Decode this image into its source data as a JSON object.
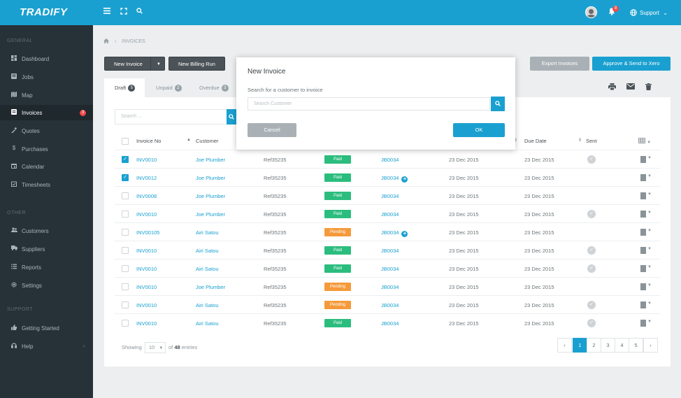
{
  "app": {
    "logo": "TRADIFY"
  },
  "topbar": {
    "support_label": "Support",
    "notification_count": "8"
  },
  "sidebar": {
    "general_label": "GENERAL",
    "other_label": "OTHER",
    "support_label": "SUPPORT",
    "general_items": [
      {
        "label": "Dashboard",
        "icon": "dashboard-icon"
      },
      {
        "label": "Jobs",
        "icon": "jobs-icon"
      },
      {
        "label": "Map",
        "icon": "map-icon"
      },
      {
        "label": "Invoices",
        "icon": "invoices-icon",
        "badge": "3"
      },
      {
        "label": "Quotes",
        "icon": "quotes-icon"
      },
      {
        "label": "Purchases",
        "icon": "dollar-icon"
      },
      {
        "label": "Calendar",
        "icon": "calendar-icon"
      },
      {
        "label": "Timesheets",
        "icon": "timesheets-icon"
      }
    ],
    "other_items": [
      {
        "label": "Customers",
        "icon": "customers-icon"
      },
      {
        "label": "Suppliers",
        "icon": "truck-icon"
      },
      {
        "label": "Reports",
        "icon": "reports-icon"
      },
      {
        "label": "Settings",
        "icon": "gear-icon"
      }
    ],
    "support_items": [
      {
        "label": "Getting Started",
        "icon": "thumbs-up-icon"
      },
      {
        "label": "Help",
        "icon": "headset-icon"
      }
    ]
  },
  "breadcrumb": {
    "current": "INVOICES"
  },
  "toolbar": {
    "new_invoice": "New Invoice",
    "new_billing_run": "New Billing Run",
    "export_invoices": "Export Invoices",
    "approve_send": "Approve & Send to Xero"
  },
  "tabs": [
    {
      "label": "Draft",
      "count": "5"
    },
    {
      "label": "Unpaid",
      "count": "2"
    },
    {
      "label": "Overdue",
      "count": "3"
    }
  ],
  "search": {
    "placeholder": "Search ..."
  },
  "table": {
    "headers": {
      "invoice_no": "Invoice No",
      "customer": "Customer",
      "due_date": "Due Date",
      "sent": "Sent"
    },
    "rows": [
      {
        "checked": true,
        "invoice": "INV0010",
        "customer": "Joe Plumber",
        "ref": "Ref35235",
        "status": "Paid",
        "job": "JB0034",
        "plus": false,
        "date1": "23 Dec 2015",
        "date2": "23 Dec 2015",
        "sent": true
      },
      {
        "checked": true,
        "invoice": "INV0012",
        "customer": "Joe Plumber",
        "ref": "Ref35235",
        "status": "Paid",
        "job": "JB0034",
        "plus": true,
        "date1": "23 Dec 2015",
        "date2": "23 Dec 2015",
        "sent": false
      },
      {
        "checked": false,
        "invoice": "INV0008",
        "customer": "Joe Plumber",
        "ref": "Ref35235",
        "status": "Paid",
        "job": "JB0034",
        "plus": false,
        "date1": "23 Dec 2015",
        "date2": "23 Dec 2015",
        "sent": false
      },
      {
        "checked": false,
        "invoice": "INV0010",
        "customer": "Joe Plumber",
        "ref": "Ref35235",
        "status": "Paid",
        "job": "JB0034",
        "plus": false,
        "date1": "23 Dec 2015",
        "date2": "23 Dec 2015",
        "sent": true
      },
      {
        "checked": false,
        "invoice": "INV00105",
        "customer": "Airi Satou",
        "ref": "Ref35235",
        "status": "Pending",
        "job": "JB0034",
        "plus": true,
        "date1": "23 Dec 2015",
        "date2": "23 Dec 2015",
        "sent": false
      },
      {
        "checked": false,
        "invoice": "INV0010",
        "customer": "Airi Satou",
        "ref": "Ref35235",
        "status": "Paid",
        "job": "JB0034",
        "plus": false,
        "date1": "23 Dec 2015",
        "date2": "23 Dec 2015",
        "sent": true
      },
      {
        "checked": false,
        "invoice": "INV0010",
        "customer": "Airi Satou",
        "ref": "Ref35235",
        "status": "Paid",
        "job": "JB0034",
        "plus": false,
        "date1": "23 Dec 2015",
        "date2": "23 Dec 2015",
        "sent": true
      },
      {
        "checked": false,
        "invoice": "INV0010",
        "customer": "Joe Plumber",
        "ref": "Ref35235",
        "status": "Pending",
        "job": "JB0034",
        "plus": false,
        "date1": "23 Dec 2015",
        "date2": "23 Dec 2015",
        "sent": false
      },
      {
        "checked": false,
        "invoice": "INV0010",
        "customer": "Airi Satou",
        "ref": "Ref35235",
        "status": "Pending",
        "job": "JB0034",
        "plus": false,
        "date1": "23 Dec 2015",
        "date2": "23 Dec 2015",
        "sent": true
      },
      {
        "checked": false,
        "invoice": "INV0010",
        "customer": "Airi Satou",
        "ref": "Ref35235",
        "status": "Paid",
        "job": "JB0034",
        "plus": false,
        "date1": "23 Dec 2015",
        "date2": "23 Dec 2015",
        "sent": true
      }
    ]
  },
  "footer": {
    "showing": "Showing",
    "page_size": "10",
    "of_label": "of",
    "total": "48",
    "entries": "entries",
    "pages": [
      "1",
      "2",
      "3",
      "4",
      "5"
    ],
    "current_page": "1"
  },
  "modal": {
    "title": "New Invoice",
    "subtitle": "Search for a customer to invoice",
    "placeholder": "Search Customer",
    "cancel": "Cancel",
    "ok": "OK"
  },
  "colors": {
    "brand": "#1aa0d0",
    "sidebar": "#263238",
    "paid": "#2bbd7e",
    "pending": "#f59a3b",
    "badge": "#f04a4a"
  }
}
